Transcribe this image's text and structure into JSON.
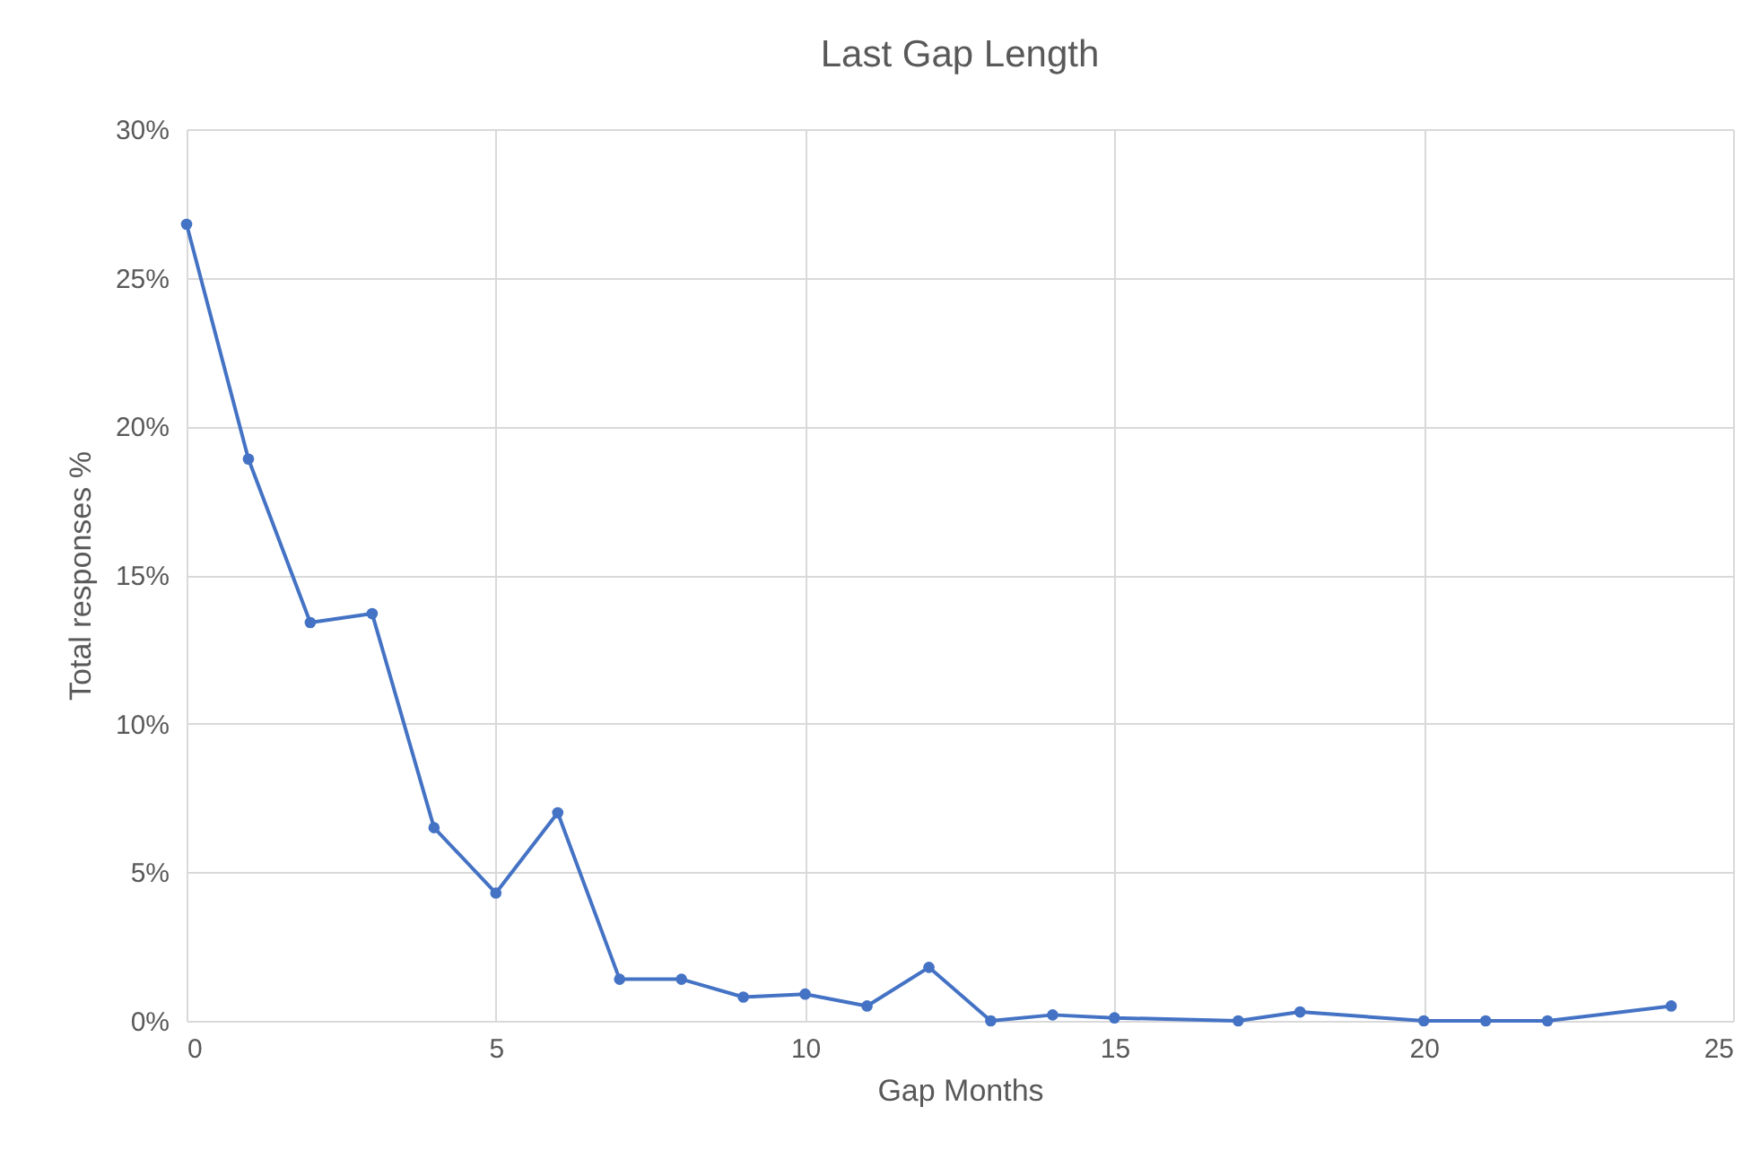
{
  "chart_data": {
    "type": "line",
    "title": "Last Gap Length",
    "xlabel": "Gap Months",
    "ylabel": "Total responses %",
    "x": [
      0,
      1,
      2,
      3,
      4,
      5,
      6,
      7,
      8,
      9,
      10,
      11,
      12,
      13,
      14,
      15,
      17,
      18,
      20,
      21,
      22,
      24
    ],
    "series": [
      {
        "color": "#4472c4",
        "values": [
          26.8,
          18.9,
          13.4,
          13.7,
          6.5,
          4.3,
          7.0,
          1.4,
          1.4,
          0.8,
          0.9,
          0.5,
          1.8,
          0.0,
          0.2,
          0.1,
          0.0,
          0.3,
          0.0,
          0.0,
          0.0,
          0.5
        ]
      }
    ],
    "xlim": [
      0,
      25
    ],
    "xticks": [
      0,
      5,
      10,
      15,
      20,
      25
    ],
    "ylim": [
      0,
      30
    ],
    "yticks": [
      {
        "value": 0,
        "label": "0%"
      },
      {
        "value": 5,
        "label": "5%"
      },
      {
        "value": 10,
        "label": "10%"
      },
      {
        "value": 15,
        "label": "15%"
      },
      {
        "value": 20,
        "label": "20%"
      },
      {
        "value": 25,
        "label": "25%"
      },
      {
        "value": 30,
        "label": "30%"
      }
    ],
    "grid": true,
    "marker": "circle",
    "line_style": "solid"
  }
}
